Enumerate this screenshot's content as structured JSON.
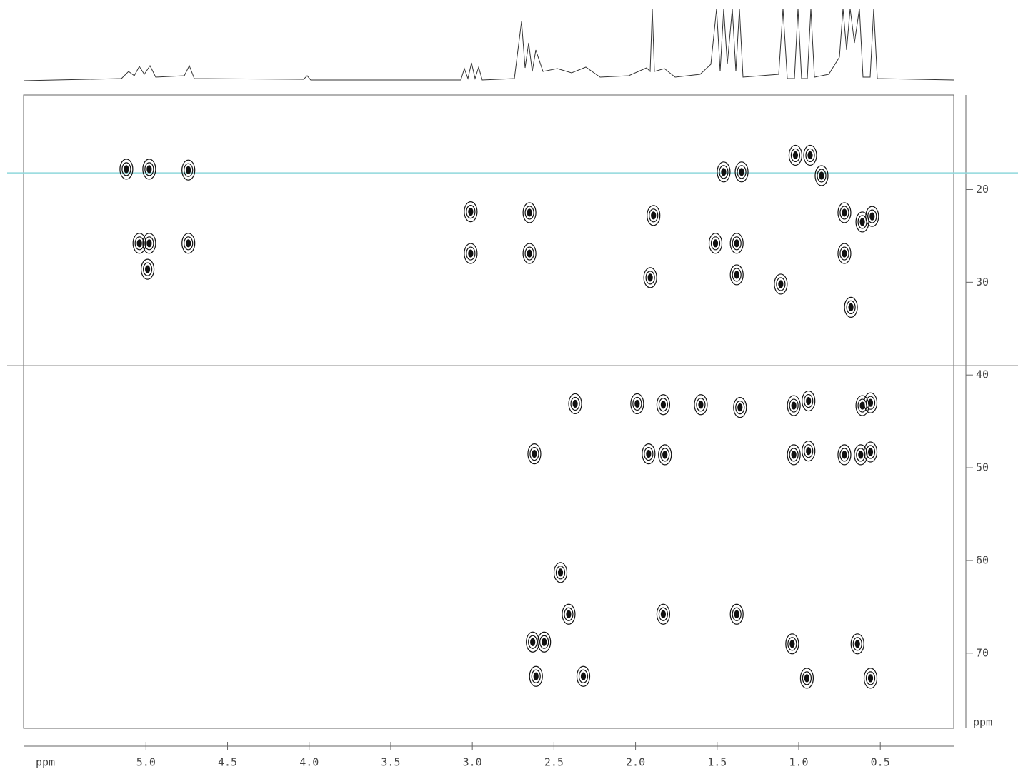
{
  "chart_data": {
    "type": "scatter",
    "x_label": "ppm",
    "y_label": "ppm",
    "xlim": [
      5.75,
      0.05
    ],
    "ylim": [
      9.8,
      78.1
    ],
    "xticks": [
      {
        "value": 5,
        "label": "5.0"
      },
      {
        "value": 4.5,
        "label": "4.5"
      },
      {
        "value": 4,
        "label": "4.0"
      },
      {
        "value": 3.5,
        "label": "3.5"
      },
      {
        "value": 3,
        "label": "3.0"
      },
      {
        "value": 2.5,
        "label": "2.5"
      },
      {
        "value": 2,
        "label": "2.0"
      },
      {
        "value": 1.5,
        "label": "1.5"
      },
      {
        "value": 1,
        "label": "1.0"
      },
      {
        "value": 0.5,
        "label": "0.5"
      }
    ],
    "yticks": [
      20,
      30,
      40,
      50,
      60,
      70
    ],
    "cursor_lines": [
      {
        "value": 18.2,
        "color": "#8fd8dc"
      },
      {
        "value": 39.0,
        "color": "#8a8a8a"
      }
    ],
    "series": [
      {
        "color": "#111111",
        "x": [
          4.98,
          5.12,
          4.74,
          5.04,
          4.98,
          4.74,
          4.99,
          3.01,
          2.65,
          3.01,
          2.65,
          1.89,
          1.91,
          1.46,
          1.35,
          1.51,
          1.38,
          1.38,
          1.11,
          1.02,
          0.93,
          0.72,
          0.72,
          0.61,
          0.55,
          0.68,
          0.86,
          2.37,
          1.99,
          1.83,
          1.6,
          1.36,
          1.03,
          0.94,
          0.61,
          0.56,
          1.92,
          1.82,
          2.62,
          1.03,
          0.94,
          0.72,
          0.62,
          0.56,
          2.46,
          2.41,
          1.83,
          1.38,
          2.63,
          2.56,
          2.61,
          2.32,
          1.04,
          0.95,
          0.64,
          0.56
        ],
        "values": [
          17.8,
          17.8,
          17.9,
          25.8,
          25.8,
          25.8,
          28.6,
          22.4,
          22.5,
          26.9,
          26.9,
          22.8,
          29.5,
          18.1,
          18.1,
          25.8,
          25.8,
          29.2,
          30.2,
          16.3,
          16.3,
          26.9,
          22.5,
          23.5,
          22.9,
          32.7,
          18.5,
          43.1,
          43.1,
          43.2,
          43.2,
          43.5,
          43.3,
          42.8,
          43.3,
          43.0,
          48.5,
          48.6,
          48.5,
          48.6,
          48.2,
          48.6,
          48.6,
          48.3,
          61.3,
          65.8,
          65.8,
          65.8,
          68.8,
          68.8,
          72.5,
          72.5,
          69.0,
          72.7,
          69.0,
          72.7
        ]
      }
    ]
  }
}
